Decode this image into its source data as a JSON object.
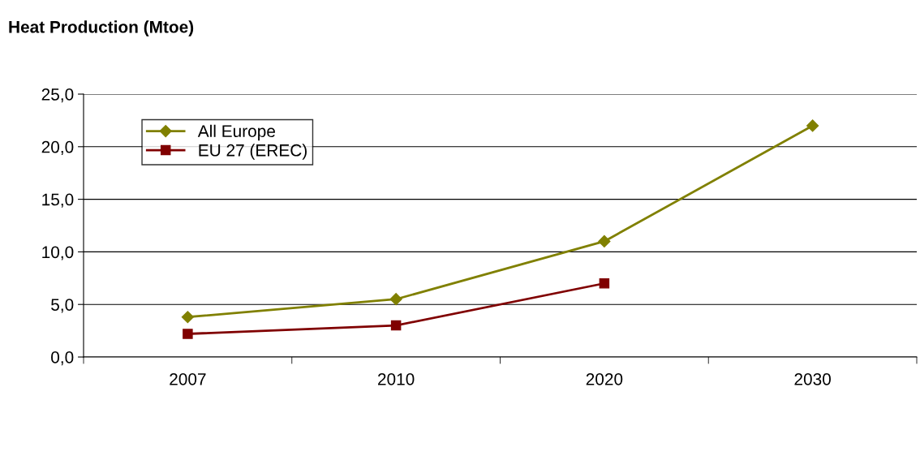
{
  "chart_data": {
    "type": "line",
    "title": "Heat Production (Mtoe)",
    "categories": [
      "2007",
      "2010",
      "2020",
      "2030"
    ],
    "series": [
      {
        "name": "All Europe",
        "color": "#808000",
        "marker": "diamond",
        "values": [
          3.8,
          5.5,
          11.0,
          22.0
        ]
      },
      {
        "name": "EU 27 (EREC)",
        "color": "#800000",
        "marker": "square",
        "values": [
          2.2,
          3.0,
          7.0,
          null
        ]
      }
    ],
    "ylim": [
      0,
      25
    ],
    "yticks": [
      {
        "value": 0,
        "label": "0,0"
      },
      {
        "value": 5,
        "label": "5,0"
      },
      {
        "value": 10,
        "label": "10,0"
      },
      {
        "value": 15,
        "label": "15,0"
      },
      {
        "value": 20,
        "label": "20,0"
      },
      {
        "value": 25,
        "label": "25,0"
      }
    ],
    "grid": "y",
    "legend": "top left",
    "line_style": "solid"
  }
}
